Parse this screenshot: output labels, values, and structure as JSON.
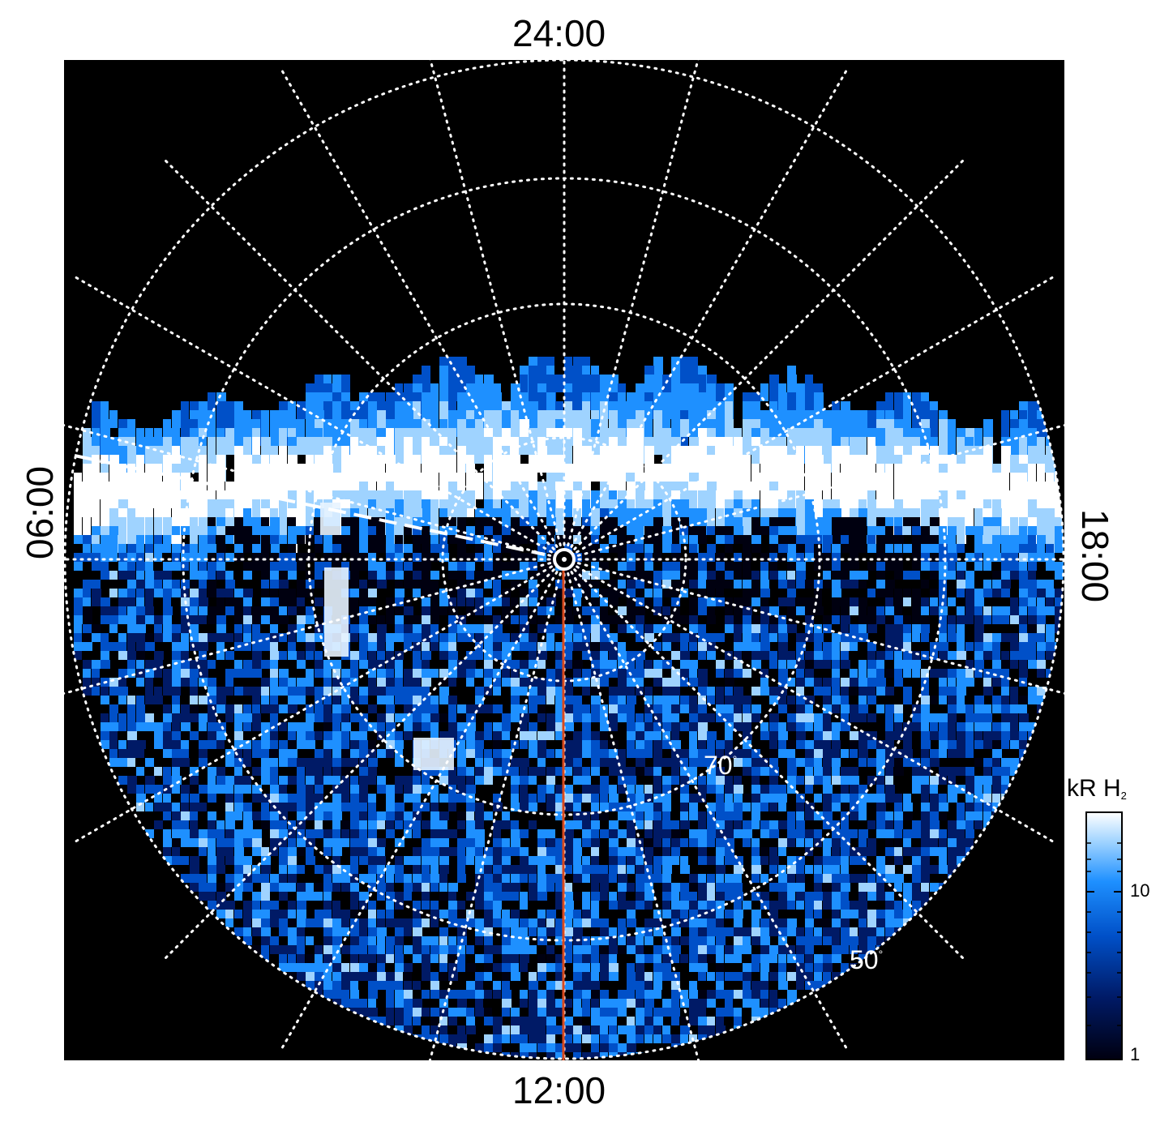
{
  "local_time_labels": {
    "top": "24:00",
    "bottom": "12:00",
    "left": "06:00",
    "right": "18:00"
  },
  "latitude_labels": {
    "inner": "70",
    "outer": "50",
    "degree_symbol": "°"
  },
  "colorbar": {
    "title_main": "kR H",
    "title_sub": "2",
    "ticks": [
      "10",
      "1"
    ],
    "scale": "log",
    "range": [
      1,
      25
    ],
    "colors": [
      "#000010",
      "#001a66",
      "#0050c8",
      "#1e90ff",
      "#9fd3ff",
      "#ffffff"
    ]
  },
  "colors": {
    "background": "#000000",
    "grid": "#ffffff",
    "meridian_line": "#d94a1e"
  }
}
